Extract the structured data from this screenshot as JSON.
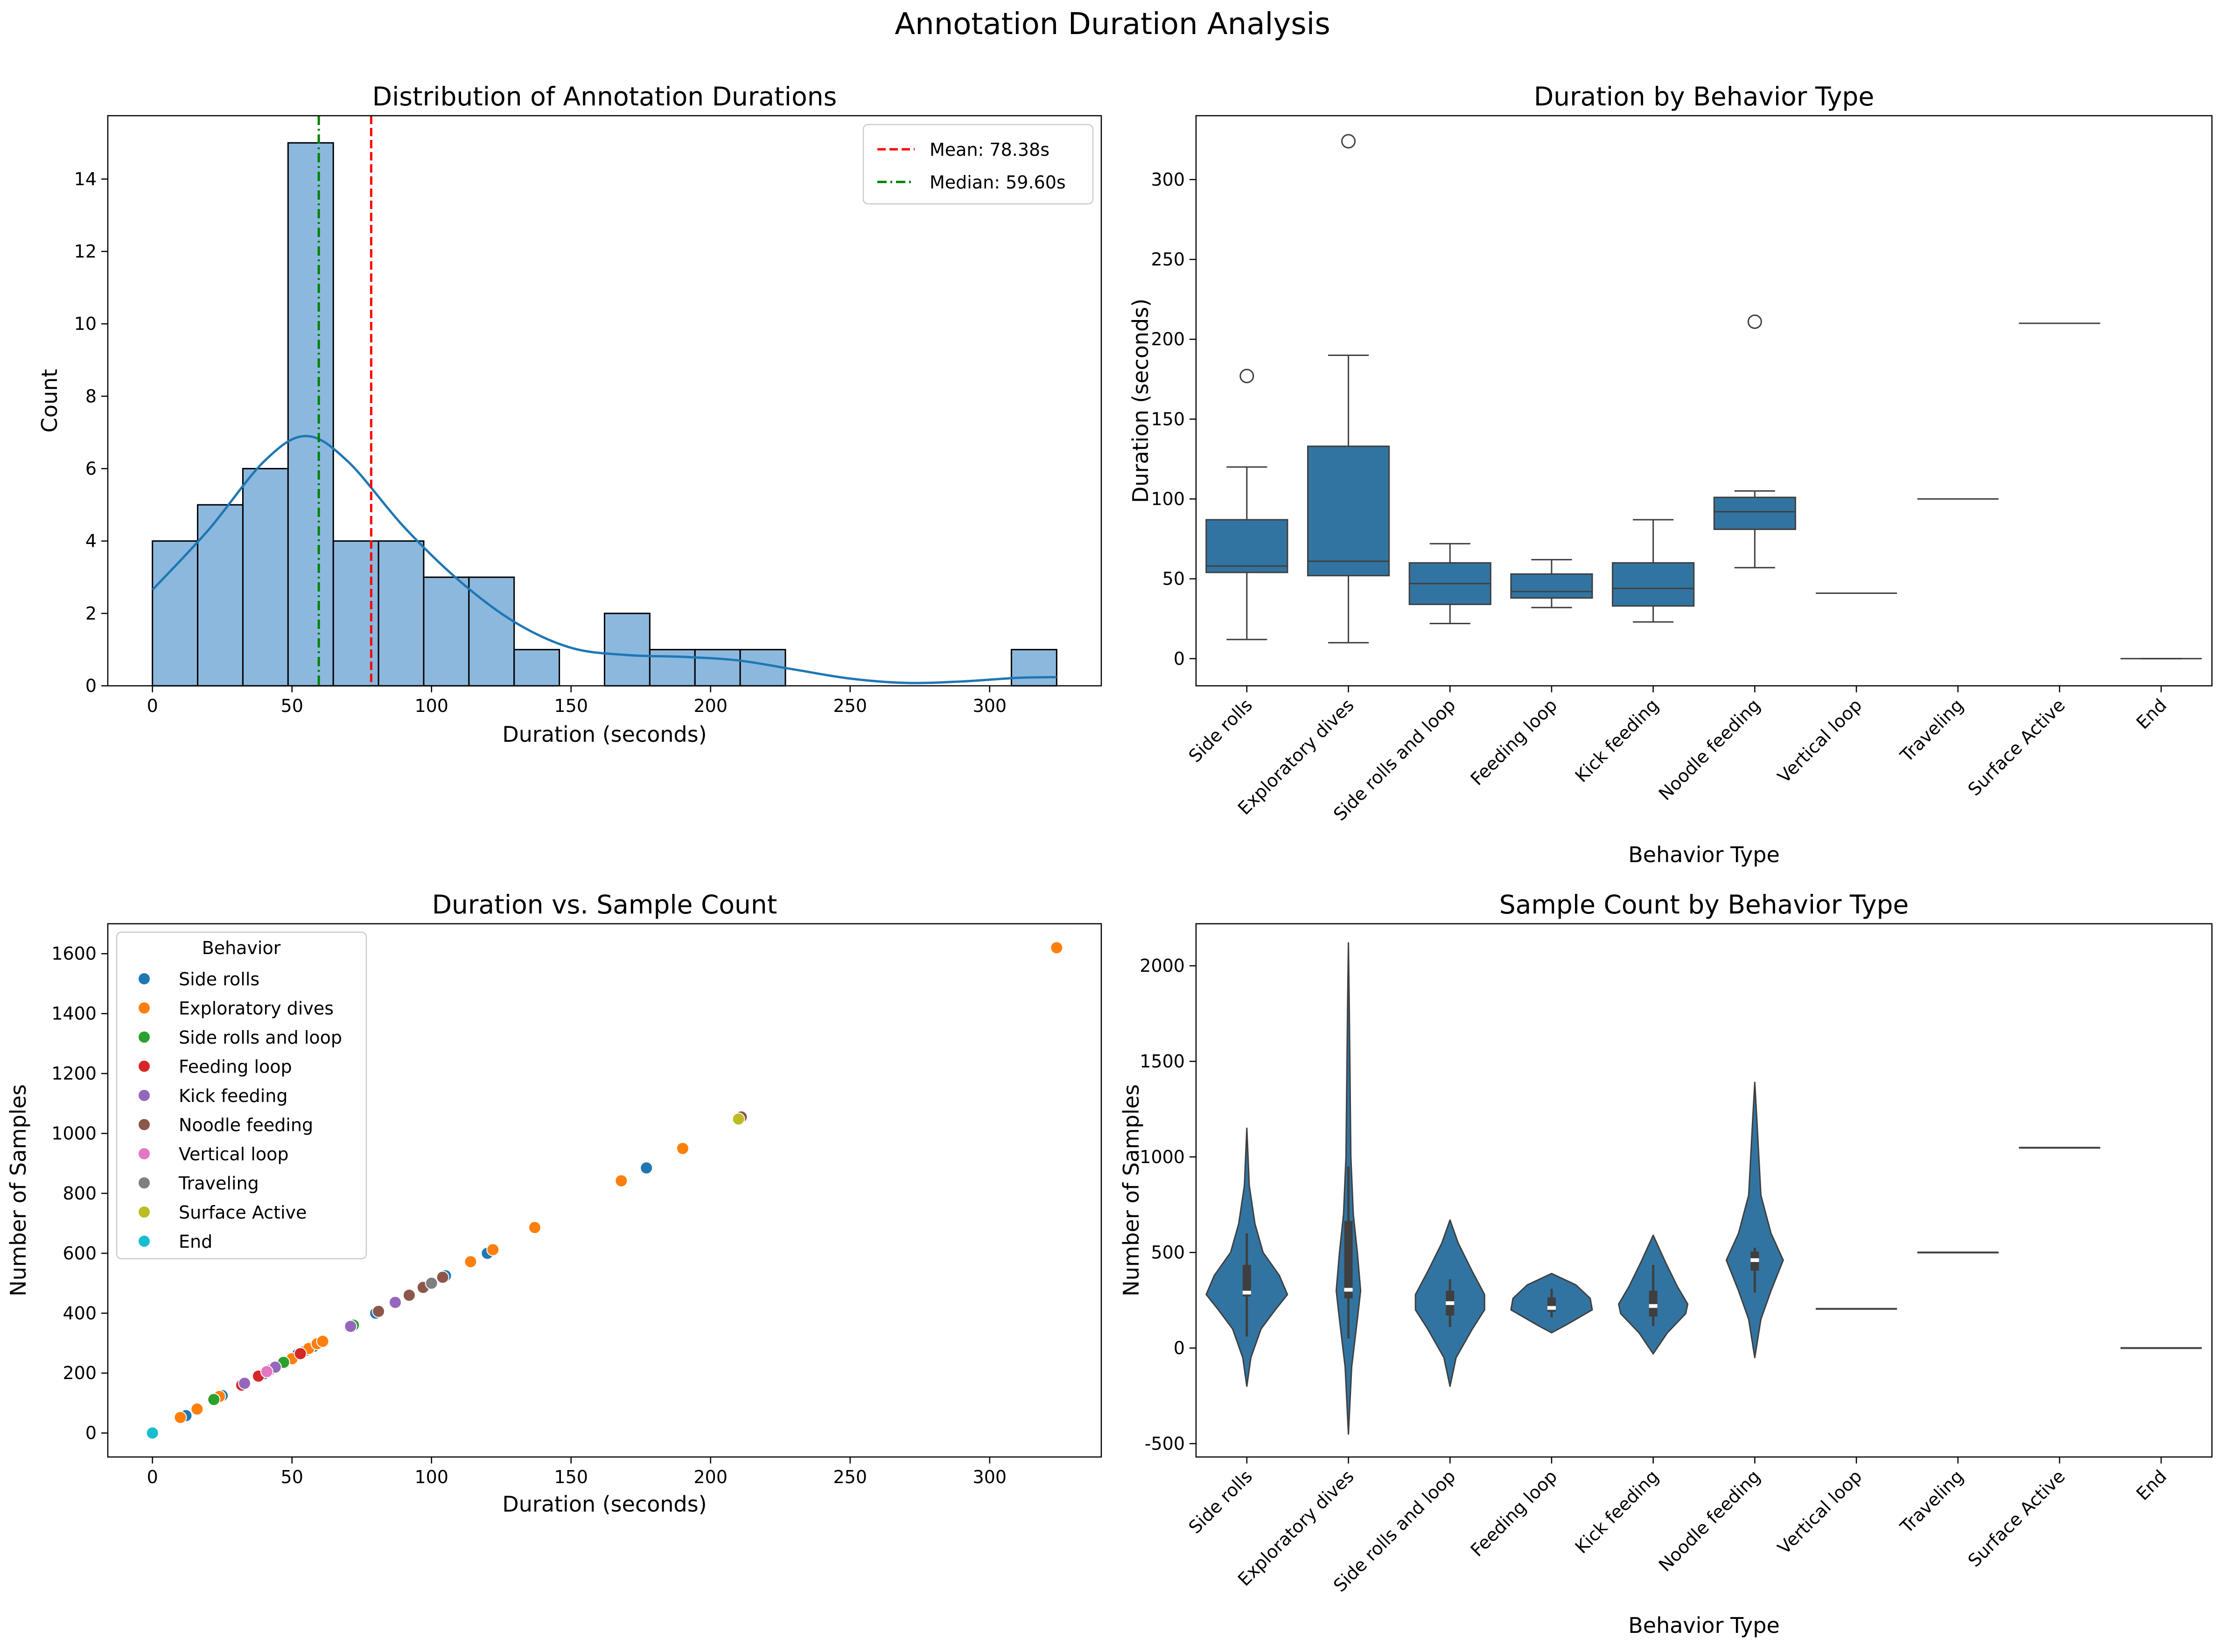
{
  "figure_title": "Annotation Duration Analysis",
  "colors": {
    "hist_fill": "#8cb8de",
    "kde": "#1f77b4",
    "mean_line": "#ff0000",
    "median_line": "#008000",
    "box": "#3274a1",
    "violin": "#3274a1"
  },
  "chart_data": [
    {
      "type": "histogram",
      "title": "Distribution of Annotation Durations",
      "xlabel": "Duration (seconds)",
      "ylabel": "Count",
      "xlim": [
        -16,
        340
      ],
      "ylim": [
        0,
        15.75
      ],
      "xticks": [
        0,
        50,
        100,
        150,
        200,
        250,
        300
      ],
      "yticks": [
        0,
        2,
        4,
        6,
        8,
        10,
        12,
        14
      ],
      "bin_width": 16.2,
      "bins": [
        {
          "start": 0,
          "count": 4
        },
        {
          "start": 16.2,
          "count": 5
        },
        {
          "start": 32.4,
          "count": 6
        },
        {
          "start": 48.6,
          "count": 15
        },
        {
          "start": 64.8,
          "count": 4
        },
        {
          "start": 81.0,
          "count": 4
        },
        {
          "start": 97.2,
          "count": 3
        },
        {
          "start": 113.4,
          "count": 3
        },
        {
          "start": 129.6,
          "count": 1
        },
        {
          "start": 145.8,
          "count": 0
        },
        {
          "start": 162.0,
          "count": 2
        },
        {
          "start": 178.2,
          "count": 1
        },
        {
          "start": 194.4,
          "count": 1
        },
        {
          "start": 210.6,
          "count": 1
        },
        {
          "start": 226.8,
          "count": 0
        },
        {
          "start": 243.0,
          "count": 0
        },
        {
          "start": 259.2,
          "count": 0
        },
        {
          "start": 275.4,
          "count": 0
        },
        {
          "start": 291.6,
          "count": 0
        },
        {
          "start": 307.8,
          "count": 1
        }
      ],
      "kde": [
        [
          0,
          2.65
        ],
        [
          20,
          4.3
        ],
        [
          40,
          6.2
        ],
        [
          55,
          6.9
        ],
        [
          70,
          6.2
        ],
        [
          90,
          4.4
        ],
        [
          110,
          2.9
        ],
        [
          130,
          1.75
        ],
        [
          150,
          1.05
        ],
        [
          170,
          0.85
        ],
        [
          190,
          0.8
        ],
        [
          210,
          0.7
        ],
        [
          230,
          0.45
        ],
        [
          250,
          0.2
        ],
        [
          270,
          0.08
        ],
        [
          290,
          0.12
        ],
        [
          310,
          0.22
        ],
        [
          324,
          0.24
        ]
      ],
      "mean": {
        "value": 78.38,
        "label": "Mean: 78.38s"
      },
      "median": {
        "value": 59.6,
        "label": "Median: 59.60s"
      },
      "legend_position": "top-right"
    },
    {
      "type": "box",
      "title": "Duration by Behavior Type",
      "xlabel": "Behavior Type",
      "ylabel": "Duration (seconds)",
      "ylim": [
        -17,
        340
      ],
      "yticks": [
        0,
        50,
        100,
        150,
        200,
        250,
        300
      ],
      "categories": [
        "Side rolls",
        "Exploratory dives",
        "Side rolls and loop",
        "Feeding loop",
        "Kick feeding",
        "Noodle feeding",
        "Vertical loop",
        "Traveling",
        "Surface Active",
        "End"
      ],
      "boxes": [
        {
          "q1": 54,
          "median": 58,
          "q3": 87,
          "whisker_low": 12,
          "whisker_high": 120,
          "outliers": [
            177
          ]
        },
        {
          "q1": 52,
          "median": 61,
          "q3": 133,
          "whisker_low": 10,
          "whisker_high": 190,
          "outliers": [
            324
          ]
        },
        {
          "q1": 34,
          "median": 47,
          "q3": 60,
          "whisker_low": 22,
          "whisker_high": 72,
          "outliers": []
        },
        {
          "q1": 38,
          "median": 42,
          "q3": 53,
          "whisker_low": 32,
          "whisker_high": 62,
          "outliers": []
        },
        {
          "q1": 33,
          "median": 44,
          "q3": 60,
          "whisker_low": 23,
          "whisker_high": 87,
          "outliers": []
        },
        {
          "q1": 81,
          "median": 92,
          "q3": 101,
          "whisker_low": 57,
          "whisker_high": 105,
          "outliers": [
            211
          ]
        },
        {
          "q1": 41,
          "median": 41,
          "q3": 41,
          "whisker_low": 41,
          "whisker_high": 41,
          "outliers": []
        },
        {
          "q1": 100,
          "median": 100,
          "q3": 100,
          "whisker_low": 100,
          "whisker_high": 100,
          "outliers": []
        },
        {
          "q1": 210,
          "median": 210,
          "q3": 210,
          "whisker_low": 210,
          "whisker_high": 210,
          "outliers": []
        },
        {
          "q1": 0,
          "median": 0,
          "q3": 0,
          "whisker_low": 0,
          "whisker_high": 0,
          "outliers": []
        }
      ]
    },
    {
      "type": "scatter",
      "title": "Duration vs. Sample Count",
      "xlabel": "Duration (seconds)",
      "ylabel": "Number of Samples",
      "xlim": [
        -16,
        340
      ],
      "ylim": [
        -80,
        1700
      ],
      "xticks": [
        0,
        50,
        100,
        150,
        200,
        250,
        300
      ],
      "yticks": [
        0,
        200,
        400,
        600,
        800,
        1000,
        1200,
        1400,
        1600
      ],
      "legend_title": "Behavior",
      "legend_position": "top-left",
      "series": [
        {
          "name": "Side rolls",
          "color": "#1f77b4",
          "points": [
            [
              12,
              58
            ],
            [
              25,
              125
            ],
            [
              40,
              198
            ],
            [
              52,
              262
            ],
            [
              55,
              276
            ],
            [
              58,
              290
            ],
            [
              80,
              400
            ],
            [
              105,
              525
            ],
            [
              120,
              600
            ],
            [
              177,
              885
            ]
          ]
        },
        {
          "name": "Exploratory dives",
          "color": "#ff7f0e",
          "points": [
            [
              10,
              52
            ],
            [
              16,
              80
            ],
            [
              24,
              122
            ],
            [
              38,
              190
            ],
            [
              50,
              248
            ],
            [
              56,
              282
            ],
            [
              59,
              298
            ],
            [
              61,
              306
            ],
            [
              114,
              572
            ],
            [
              122,
              612
            ],
            [
              137,
              686
            ],
            [
              168,
              842
            ],
            [
              190,
              950
            ],
            [
              324,
              1620
            ]
          ]
        },
        {
          "name": "Side rolls and loop",
          "color": "#2ca02c",
          "points": [
            [
              22,
              112
            ],
            [
              47,
              236
            ],
            [
              72,
              360
            ]
          ]
        },
        {
          "name": "Feeding loop",
          "color": "#d62728",
          "points": [
            [
              32,
              160
            ],
            [
              38,
              190
            ],
            [
              42,
              210
            ],
            [
              53,
              265
            ]
          ]
        },
        {
          "name": "Kick feeding",
          "color": "#9467bd",
          "points": [
            [
              33,
              166
            ],
            [
              44,
              220
            ],
            [
              71,
              356
            ],
            [
              87,
              436
            ]
          ]
        },
        {
          "name": "Noodle feeding",
          "color": "#8c564b",
          "points": [
            [
              81,
              406
            ],
            [
              92,
              460
            ],
            [
              97,
              486
            ],
            [
              104,
              520
            ],
            [
              211,
              1055
            ]
          ]
        },
        {
          "name": "Vertical loop",
          "color": "#e377c2",
          "points": [
            [
              41,
              205
            ]
          ]
        },
        {
          "name": "Traveling",
          "color": "#7f7f7f",
          "points": [
            [
              100,
              500
            ]
          ]
        },
        {
          "name": "Surface Active",
          "color": "#bcbd22",
          "points": [
            [
              210,
              1048
            ]
          ]
        },
        {
          "name": "End",
          "color": "#17becf",
          "points": [
            [
              0,
              0
            ]
          ]
        }
      ]
    },
    {
      "type": "violin",
      "title": "Sample Count by Behavior Type",
      "xlabel": "Behavior Type",
      "ylabel": "Number of Samples",
      "ylim": [
        -570,
        2220
      ],
      "yticks": [
        -500,
        0,
        500,
        1000,
        1500,
        2000
      ],
      "categories": [
        "Side rolls",
        "Exploratory dives",
        "Side rolls and loop",
        "Feeding loop",
        "Kick feeding",
        "Noodle feeding",
        "Vertical loop",
        "Traveling",
        "Surface Active",
        "End"
      ],
      "violins": [
        {
          "range": [
            -200,
            1150
          ],
          "q1": 270,
          "median": 290,
          "q3": 435,
          "whisker_low": 60,
          "whisker_high": 600,
          "profile": [
            [
              -200,
              0.0
            ],
            [
              -50,
              0.1
            ],
            [
              100,
              0.35
            ],
            [
              200,
              0.7
            ],
            [
              280,
              1.0
            ],
            [
              380,
              0.8
            ],
            [
              500,
              0.4
            ],
            [
              650,
              0.2
            ],
            [
              850,
              0.06
            ],
            [
              1000,
              0.03
            ],
            [
              1150,
              0.0
            ]
          ]
        },
        {
          "range": [
            -450,
            2120
          ],
          "q1": 260,
          "median": 305,
          "q3": 665,
          "whisker_low": 50,
          "whisker_high": 950,
          "profile": [
            [
              -450,
              0.0
            ],
            [
              -100,
              0.08
            ],
            [
              150,
              0.22
            ],
            [
              300,
              0.3
            ],
            [
              500,
              0.22
            ],
            [
              700,
              0.12
            ],
            [
              1000,
              0.06
            ],
            [
              1400,
              0.04
            ],
            [
              1800,
              0.02
            ],
            [
              2120,
              0.0
            ]
          ]
        },
        {
          "range": [
            -200,
            670
          ],
          "q1": 170,
          "median": 235,
          "q3": 300,
          "whisker_low": 110,
          "whisker_high": 360,
          "profile": [
            [
              -200,
              0.0
            ],
            [
              -50,
              0.15
            ],
            [
              100,
              0.55
            ],
            [
              200,
              0.85
            ],
            [
              280,
              0.85
            ],
            [
              400,
              0.55
            ],
            [
              550,
              0.2
            ],
            [
              670,
              0.0
            ]
          ]
        },
        {
          "range": [
            80,
            390
          ],
          "q1": 190,
          "median": 210,
          "q3": 265,
          "whisker_low": 160,
          "whisker_high": 310,
          "profile": [
            [
              80,
              0.0
            ],
            [
              120,
              0.35
            ],
            [
              200,
              1.0
            ],
            [
              260,
              0.95
            ],
            [
              330,
              0.6
            ],
            [
              390,
              0.0
            ]
          ]
        },
        {
          "range": [
            -30,
            590
          ],
          "q1": 165,
          "median": 220,
          "q3": 300,
          "whisker_low": 115,
          "whisker_high": 435,
          "profile": [
            [
              -30,
              0.0
            ],
            [
              80,
              0.35
            ],
            [
              180,
              0.8
            ],
            [
              230,
              0.85
            ],
            [
              320,
              0.6
            ],
            [
              450,
              0.3
            ],
            [
              590,
              0.0
            ]
          ]
        },
        {
          "range": [
            -50,
            1390
          ],
          "q1": 405,
          "median": 460,
          "q3": 505,
          "whisker_low": 290,
          "whisker_high": 525,
          "profile": [
            [
              -50,
              0.0
            ],
            [
              150,
              0.15
            ],
            [
              300,
              0.4
            ],
            [
              460,
              0.7
            ],
            [
              600,
              0.4
            ],
            [
              800,
              0.15
            ],
            [
              1000,
              0.1
            ],
            [
              1200,
              0.05
            ],
            [
              1390,
              0.0
            ]
          ]
        },
        {
          "range": [
            205,
            205
          ],
          "q1": 205,
          "median": 205,
          "q3": 205,
          "whisker_low": 205,
          "whisker_high": 205,
          "profile": []
        },
        {
          "range": [
            500,
            500
          ],
          "q1": 500,
          "median": 500,
          "q3": 500,
          "whisker_low": 500,
          "whisker_high": 500,
          "profile": []
        },
        {
          "range": [
            1048,
            1048
          ],
          "q1": 1048,
          "median": 1048,
          "q3": 1048,
          "whisker_low": 1048,
          "whisker_high": 1048,
          "profile": []
        },
        {
          "range": [
            0,
            0
          ],
          "q1": 0,
          "median": 0,
          "q3": 0,
          "whisker_low": 0,
          "whisker_high": 0,
          "profile": []
        }
      ]
    }
  ]
}
